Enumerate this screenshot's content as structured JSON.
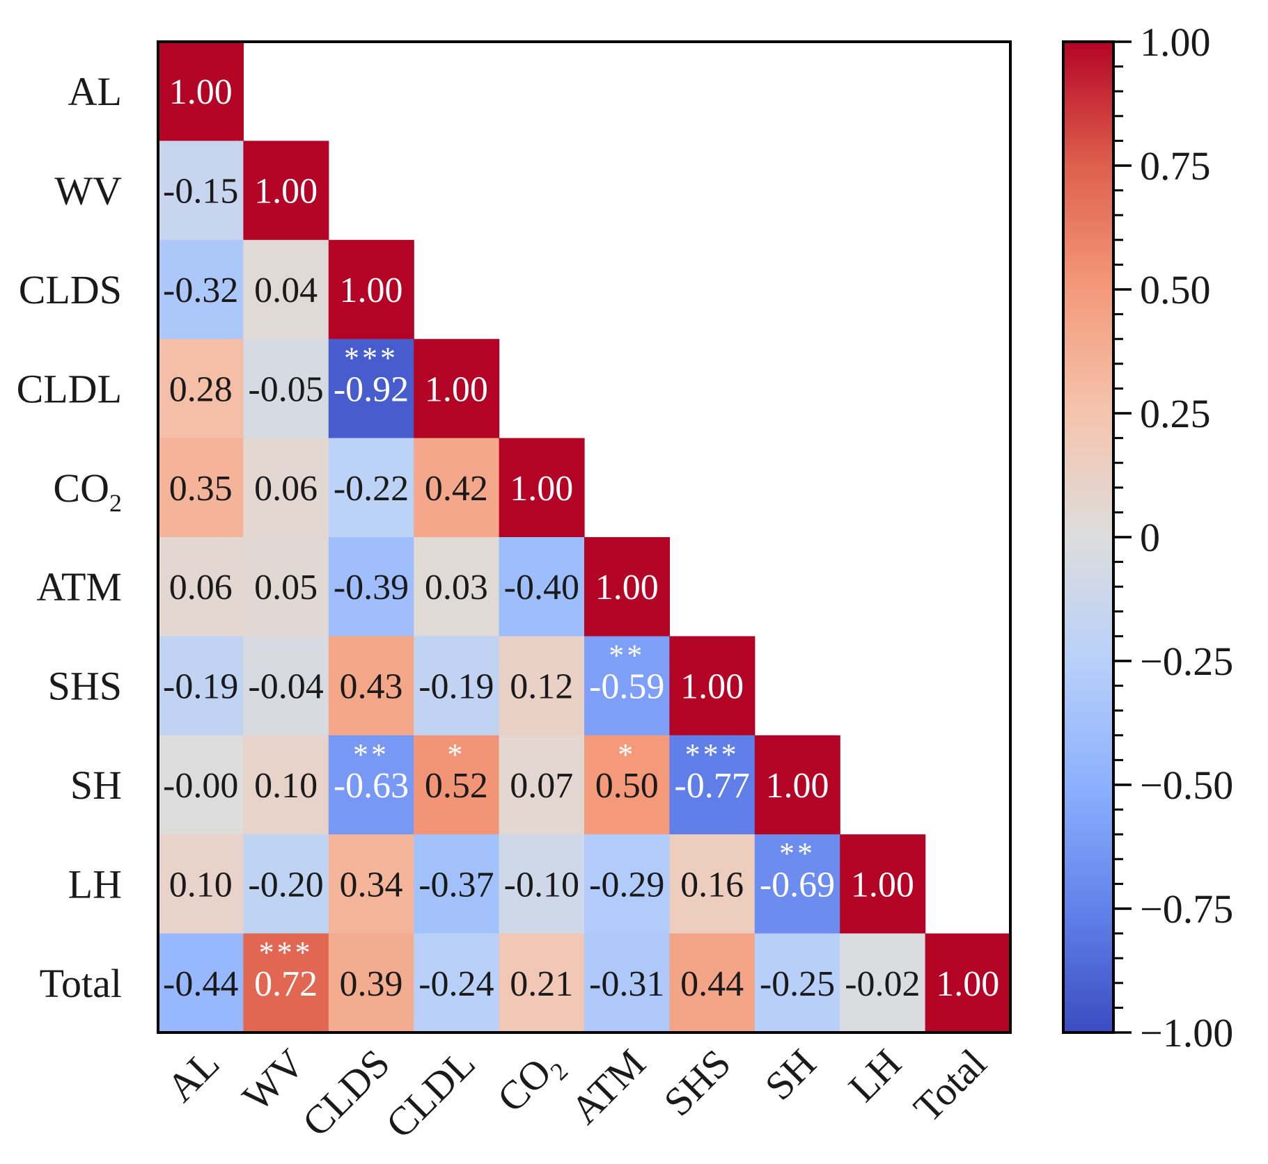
{
  "chart_data": {
    "type": "heatmap",
    "title": "",
    "variables": [
      "AL",
      "WV",
      "CLDS",
      "CLDL",
      "CO₂",
      "ATM",
      "SHS",
      "SH",
      "LH",
      "Total"
    ],
    "variable_labels": [
      {
        "main": "AL",
        "sub": ""
      },
      {
        "main": "WV",
        "sub": ""
      },
      {
        "main": "CLDS",
        "sub": ""
      },
      {
        "main": "CLDL",
        "sub": ""
      },
      {
        "main": "CO",
        "sub": "2"
      },
      {
        "main": "ATM",
        "sub": ""
      },
      {
        "main": "SHS",
        "sub": ""
      },
      {
        "main": "SH",
        "sub": ""
      },
      {
        "main": "LH",
        "sub": ""
      },
      {
        "main": "Total",
        "sub": ""
      }
    ],
    "matrix": [
      [
        1.0
      ],
      [
        -0.15,
        1.0
      ],
      [
        -0.32,
        0.04,
        1.0
      ],
      [
        0.28,
        -0.05,
        -0.92,
        1.0
      ],
      [
        0.35,
        0.06,
        -0.22,
        0.42,
        1.0
      ],
      [
        0.06,
        0.05,
        -0.39,
        0.03,
        -0.4,
        1.0
      ],
      [
        -0.19,
        -0.04,
        0.43,
        -0.19,
        0.12,
        -0.59,
        1.0
      ],
      [
        -0.0,
        0.1,
        -0.63,
        0.52,
        0.07,
        0.5,
        -0.77,
        1.0
      ],
      [
        0.1,
        -0.2,
        0.34,
        -0.37,
        -0.1,
        -0.29,
        0.16,
        -0.69,
        1.0
      ],
      [
        -0.44,
        0.72,
        0.39,
        -0.24,
        0.21,
        -0.31,
        0.44,
        -0.25,
        -0.02,
        1.0
      ]
    ],
    "cell_labels": [
      [
        "1.00"
      ],
      [
        "-0.15",
        "1.00"
      ],
      [
        "-0.32",
        "0.04",
        "1.00"
      ],
      [
        "0.28",
        "-0.05",
        "-0.92",
        "1.00"
      ],
      [
        "0.35",
        "0.06",
        "-0.22",
        "0.42",
        "1.00"
      ],
      [
        "0.06",
        "0.05",
        "-0.39",
        "0.03",
        "-0.40",
        "1.00"
      ],
      [
        "-0.19",
        "-0.04",
        "0.43",
        "-0.19",
        "0.12",
        "-0.59",
        "1.00"
      ],
      [
        "-0.00",
        "0.10",
        "-0.63",
        "0.52",
        "0.07",
        "0.50",
        "-0.77",
        "1.00"
      ],
      [
        "0.10",
        "-0.20",
        "0.34",
        "-0.37",
        "-0.10",
        "-0.29",
        "0.16",
        "-0.69",
        "1.00"
      ],
      [
        "-0.44",
        "0.72",
        "0.39",
        "-0.24",
        "0.21",
        "-0.31",
        "0.44",
        "-0.25",
        "-0.02",
        "1.00"
      ]
    ],
    "significance": [
      {
        "row": 3,
        "col": 2,
        "mark": "***"
      },
      {
        "row": 6,
        "col": 5,
        "mark": "**"
      },
      {
        "row": 7,
        "col": 2,
        "mark": "**"
      },
      {
        "row": 7,
        "col": 3,
        "mark": "*"
      },
      {
        "row": 7,
        "col": 5,
        "mark": "*"
      },
      {
        "row": 7,
        "col": 6,
        "mark": "***"
      },
      {
        "row": 8,
        "col": 7,
        "mark": "**"
      },
      {
        "row": 9,
        "col": 1,
        "mark": "***"
      }
    ],
    "colorbar": {
      "range": [
        -1.0,
        1.0
      ],
      "ticks": [
        1.0,
        0.75,
        0.5,
        0.25,
        0,
        -0.25,
        -0.5,
        -0.75,
        -1.0
      ],
      "tick_labels": [
        "1.00",
        "0.75",
        "0.50",
        "0.25",
        "0",
        "−0.25",
        "−0.50",
        "−0.75",
        "−1.00"
      ],
      "colormap": "coolwarm",
      "colors": {
        "low": "#3b4cc0",
        "mid": "#dddddd",
        "high": "#b40426"
      }
    }
  }
}
